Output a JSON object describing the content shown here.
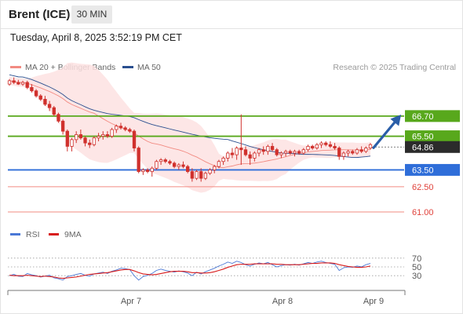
{
  "header": {
    "title": "Brent (ICE)",
    "interval": "30 MIN"
  },
  "timestamp": "Tuesday, April 8, 2025 3:52:19 PM CET",
  "legend": {
    "items": [
      {
        "label": "MA 20 + Bollinger Bands",
        "color": "#f28b82"
      },
      {
        "label": "MA 50",
        "color": "#2a4f8f"
      }
    ],
    "copyright": "Research © 2025 Trading Central"
  },
  "rsi_legend": {
    "items": [
      {
        "label": "RSI",
        "color": "#4a78d6"
      },
      {
        "label": "9MA",
        "color": "#d81b1b"
      }
    ]
  },
  "colors": {
    "resistance": "#58a81c",
    "pivot": "#2f6ed9",
    "support": "#f28b82",
    "last_price": "#2b2b2b",
    "arrow": "#2a5ea8",
    "band_fill": "#fde2e2",
    "ma20": "#f28b82",
    "ma50": "#2a4f8f",
    "candle": "#d0312d",
    "rsi": "#4a78d6",
    "rsi_ma": "#d81b1b"
  },
  "chart_data": {
    "type": "candlestick",
    "y_range": [
      60.3,
      69.4
    ],
    "x_labels": [
      "Apr 7",
      "Apr 8",
      "Apr 9"
    ],
    "levels": [
      {
        "value": 66.7,
        "label": "66.70",
        "kind": "resistance"
      },
      {
        "value": 65.5,
        "label": "65.50",
        "kind": "resistance"
      },
      {
        "value": 64.86,
        "label": "64.86",
        "kind": "last"
      },
      {
        "value": 63.5,
        "label": "63.50",
        "kind": "pivot"
      },
      {
        "value": 62.5,
        "label": "62.50",
        "kind": "support"
      },
      {
        "value": 61.0,
        "label": "61.00",
        "kind": "support"
      }
    ],
    "candles": [
      [
        68.6,
        68.9,
        68.5,
        68.8
      ],
      [
        68.8,
        69.0,
        68.6,
        68.7
      ],
      [
        68.7,
        68.85,
        68.55,
        68.6
      ],
      [
        68.6,
        68.8,
        68.5,
        68.7
      ],
      [
        68.7,
        68.8,
        68.3,
        68.4
      ],
      [
        68.4,
        68.6,
        68.1,
        68.2
      ],
      [
        68.2,
        68.3,
        67.8,
        67.9
      ],
      [
        67.9,
        68.0,
        67.6,
        67.7
      ],
      [
        67.7,
        67.9,
        67.3,
        67.4
      ],
      [
        67.4,
        67.6,
        67.0,
        67.2
      ],
      [
        67.2,
        67.3,
        66.7,
        66.8
      ],
      [
        66.8,
        66.9,
        66.3,
        66.4
      ],
      [
        66.4,
        66.5,
        65.6,
        65.8
      ],
      [
        65.8,
        65.9,
        64.6,
        64.9
      ],
      [
        64.9,
        65.4,
        64.6,
        65.3
      ],
      [
        65.3,
        65.8,
        65.1,
        65.6
      ],
      [
        65.6,
        65.9,
        65.3,
        65.4
      ],
      [
        65.4,
        65.5,
        64.9,
        65.1
      ],
      [
        65.1,
        65.3,
        64.8,
        65.0
      ],
      [
        65.0,
        65.5,
        64.9,
        65.4
      ],
      [
        65.4,
        65.7,
        65.2,
        65.5
      ],
      [
        65.5,
        65.8,
        65.3,
        65.6
      ],
      [
        65.6,
        65.8,
        65.4,
        65.5
      ],
      [
        65.5,
        66.0,
        65.4,
        65.9
      ],
      [
        65.9,
        66.2,
        65.7,
        66.1
      ],
      [
        66.1,
        66.3,
        65.9,
        66.0
      ],
      [
        66.0,
        66.1,
        65.8,
        65.9
      ],
      [
        65.9,
        66.0,
        65.7,
        65.8
      ],
      [
        65.8,
        65.9,
        64.6,
        64.8
      ],
      [
        64.8,
        64.9,
        63.3,
        63.4
      ],
      [
        63.4,
        63.6,
        63.2,
        63.5
      ],
      [
        63.5,
        63.6,
        63.3,
        63.4
      ],
      [
        63.4,
        63.7,
        63.1,
        63.6
      ],
      [
        63.6,
        64.1,
        63.5,
        64.0
      ],
      [
        64.0,
        64.2,
        63.8,
        64.1
      ],
      [
        64.1,
        64.2,
        63.9,
        64.0
      ],
      [
        64.0,
        64.1,
        63.8,
        63.9
      ],
      [
        63.9,
        64.0,
        63.6,
        63.7
      ],
      [
        63.7,
        63.9,
        63.5,
        63.8
      ],
      [
        63.8,
        64.0,
        63.6,
        63.7
      ],
      [
        63.7,
        63.8,
        63.3,
        63.4
      ],
      [
        63.4,
        63.6,
        62.8,
        63.0
      ],
      [
        63.0,
        63.5,
        62.9,
        63.4
      ],
      [
        63.4,
        63.6,
        62.8,
        63.0
      ],
      [
        63.0,
        63.4,
        62.9,
        63.3
      ],
      [
        63.3,
        63.6,
        63.2,
        63.5
      ],
      [
        63.5,
        63.8,
        63.3,
        63.7
      ],
      [
        63.7,
        64.1,
        63.6,
        64.0
      ],
      [
        64.0,
        64.3,
        63.8,
        64.2
      ],
      [
        64.2,
        64.6,
        64.0,
        64.5
      ],
      [
        64.5,
        64.8,
        64.2,
        64.4
      ],
      [
        64.4,
        64.9,
        64.1,
        64.8
      ],
      [
        64.8,
        66.8,
        63.8,
        64.7
      ],
      [
        64.7,
        64.9,
        64.3,
        64.4
      ],
      [
        64.4,
        64.6,
        63.8,
        64.2
      ],
      [
        64.2,
        64.6,
        64.0,
        64.5
      ],
      [
        64.5,
        64.8,
        64.3,
        64.7
      ],
      [
        64.7,
        64.9,
        64.4,
        64.6
      ],
      [
        64.6,
        65.0,
        64.4,
        64.9
      ],
      [
        64.9,
        65.1,
        64.6,
        64.7
      ],
      [
        64.7,
        64.8,
        64.3,
        64.4
      ],
      [
        64.4,
        64.6,
        64.2,
        64.5
      ],
      [
        64.5,
        64.7,
        64.3,
        64.6
      ],
      [
        64.6,
        64.7,
        64.4,
        64.5
      ],
      [
        64.5,
        64.7,
        64.3,
        64.6
      ],
      [
        64.6,
        64.7,
        64.4,
        64.5
      ],
      [
        64.5,
        64.8,
        64.4,
        64.7
      ],
      [
        64.7,
        65.0,
        64.6,
        64.9
      ],
      [
        64.9,
        65.0,
        64.7,
        64.8
      ],
      [
        64.8,
        65.1,
        64.7,
        65.0
      ],
      [
        65.0,
        65.2,
        64.8,
        65.1
      ],
      [
        65.1,
        65.2,
        64.9,
        65.0
      ],
      [
        65.0,
        65.2,
        64.8,
        64.9
      ],
      [
        64.9,
        65.1,
        64.7,
        64.8
      ],
      [
        64.8,
        64.9,
        64.1,
        64.3
      ],
      [
        64.3,
        64.6,
        64.1,
        64.5
      ],
      [
        64.5,
        64.7,
        64.3,
        64.6
      ],
      [
        64.6,
        64.7,
        64.4,
        64.5
      ],
      [
        64.5,
        64.8,
        64.4,
        64.7
      ],
      [
        64.7,
        64.9,
        64.5,
        64.6
      ],
      [
        64.6,
        64.9,
        64.5,
        64.8
      ],
      [
        64.8,
        65.1,
        64.7,
        65.0
      ]
    ],
    "rsi": {
      "levels": [
        30,
        50,
        70
      ],
      "level_labels": [
        "30",
        "50",
        "70"
      ],
      "range": [
        0,
        100
      ],
      "values": [
        30,
        33,
        29,
        28,
        35,
        32,
        30,
        27,
        29,
        31,
        25,
        23,
        20,
        28,
        30,
        33,
        35,
        31,
        29,
        34,
        36,
        38,
        35,
        40,
        43,
        47,
        46,
        44,
        30,
        20,
        28,
        31,
        35,
        42,
        45,
        42,
        40,
        38,
        41,
        39,
        36,
        30,
        38,
        34,
        39,
        43,
        47,
        52,
        56,
        61,
        58,
        63,
        60,
        55,
        52,
        56,
        59,
        57,
        60,
        55,
        50,
        53,
        55,
        54,
        56,
        54,
        57,
        60,
        58,
        61,
        63,
        60,
        58,
        56,
        42,
        48,
        50,
        49,
        52,
        50,
        55,
        58
      ],
      "ma_values": [
        31,
        30,
        30,
        30,
        31,
        30,
        29,
        28,
        29,
        28,
        27,
        25,
        24,
        25,
        26,
        27,
        29,
        31,
        33,
        34,
        35,
        36,
        37,
        39,
        41,
        43,
        44,
        44,
        41,
        37,
        34,
        33,
        32,
        33,
        35,
        37,
        39,
        40,
        40,
        40,
        39,
        37,
        37,
        36,
        36,
        37,
        39,
        42,
        45,
        49,
        52,
        55,
        56,
        56,
        56,
        57,
        57,
        57,
        57,
        57,
        56,
        56,
        55,
        55,
        55,
        55,
        56,
        57,
        58,
        58,
        59,
        59,
        59,
        58,
        55,
        53,
        51,
        50,
        49,
        49,
        50,
        52
      ]
    }
  }
}
